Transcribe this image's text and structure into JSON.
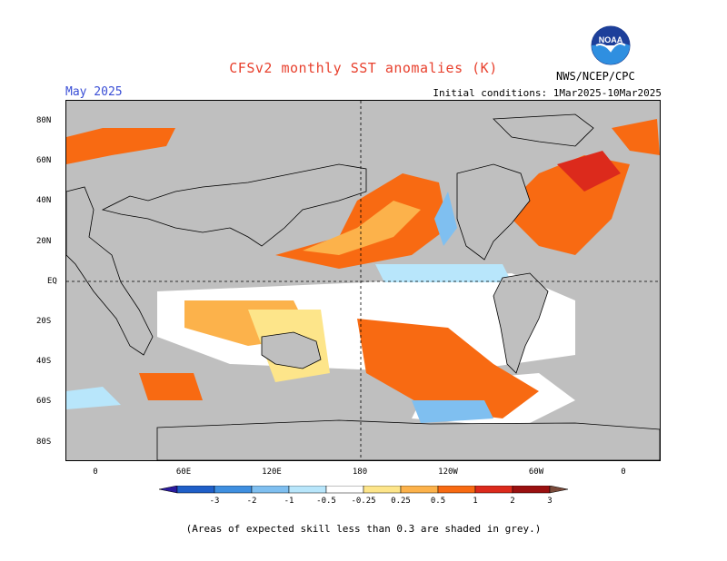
{
  "title": "CFSv2 monthly SST anomalies (K)",
  "valid_month": "May 2025",
  "initial_conditions": "Initial conditions: 1Mar2025-10Mar2025",
  "organization": "NWS/NCEP/CPC",
  "logo_text": "NOAA",
  "footnote": "(Areas of expected skill less than 0.3 are shaded in grey.)",
  "lat_labels": [
    "80N",
    "60N",
    "40N",
    "20N",
    "EQ",
    "20S",
    "40S",
    "60S",
    "80S"
  ],
  "lon_labels": [
    "0",
    "60E",
    "120E",
    "180",
    "120W",
    "60W",
    "0"
  ],
  "colorbar": {
    "labels": [
      "-3",
      "-2",
      "-1",
      "-0.5",
      "-0.25",
      "0.25",
      "0.5",
      "1",
      "2",
      "3"
    ],
    "colors": [
      "#2a1a9e",
      "#1f5fc8",
      "#3f8fe0",
      "#7fbff0",
      "#b8e6fb",
      "#ffffff",
      "#fde58a",
      "#fcb24b",
      "#f86a12",
      "#dc2a1c",
      "#9a1010",
      "#7a4a3a"
    ]
  },
  "colors": {
    "land": "#bfbfbf",
    "title": "#e8402d",
    "month": "#3a4fd6"
  }
}
